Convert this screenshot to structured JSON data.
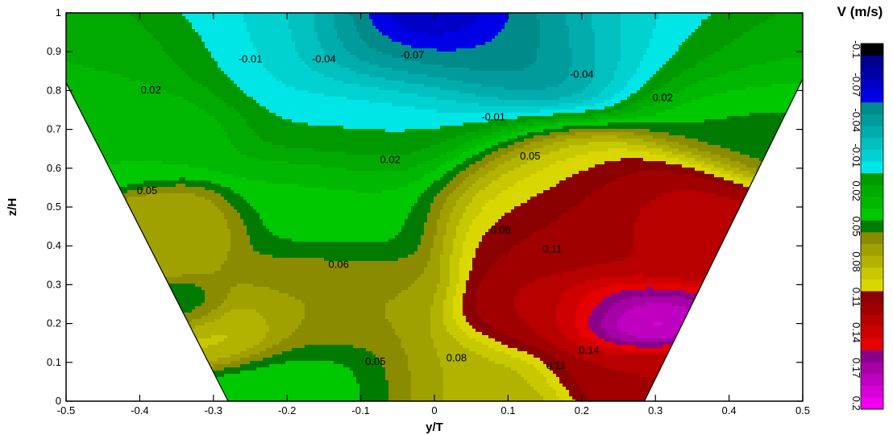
{
  "chart_data": {
    "type": "contour",
    "xlabel": "y/T",
    "ylabel": "z/H",
    "xlim": [
      -0.5,
      0.5
    ],
    "ylim": [
      0,
      1
    ],
    "x_ticks": [
      "-0.5",
      "-0.4",
      "-0.3",
      "-0.2",
      "-0.1",
      "0",
      "0.1",
      "0.2",
      "0.3",
      "0.4",
      "0.5"
    ],
    "y_ticks": [
      "0",
      "0.1",
      "0.2",
      "0.3",
      "0.4",
      "0.5",
      "0.6",
      "0.7",
      "0.8",
      "0.9",
      "1"
    ],
    "grid": false,
    "channel_boundary": [
      [
        -0.5,
        0.82
      ],
      [
        -0.28,
        0
      ],
      [
        0.285,
        0
      ],
      [
        0.5,
        0.83
      ]
    ],
    "colorbar": {
      "title": "V (m/s)",
      "placement": "right",
      "labels": [
        "-0.1",
        "-0.07",
        "-0.04",
        "-0.01",
        "0.02",
        "0.05",
        "0.08",
        "0.11",
        "0.14",
        "0.17",
        "0.2"
      ],
      "levels": [
        -0.1,
        -0.09,
        -0.08,
        -0.07,
        -0.06,
        -0.05,
        -0.04,
        -0.03,
        -0.02,
        -0.01,
        0.0,
        0.01,
        0.02,
        0.03,
        0.04,
        0.05,
        0.06,
        0.07,
        0.08,
        0.09,
        0.1,
        0.11,
        0.12,
        0.13,
        0.14,
        0.15,
        0.16,
        0.17,
        0.18,
        0.19,
        0.2
      ],
      "colors": [
        "#000000",
        "#00008b",
        "#0000a8",
        "#0000c8",
        "#0000e6",
        "#008b8b",
        "#009c9c",
        "#00adad",
        "#00c0c0",
        "#00d2d2",
        "#00e6e6",
        "#009a00",
        "#00aa00",
        "#00b800",
        "#00c800",
        "#007a00",
        "#8b8b00",
        "#a0a000",
        "#b2b200",
        "#c8c800",
        "#d8d800",
        "#8b0000",
        "#a00000",
        "#b80000",
        "#d00000",
        "#e60000",
        "#8b008b",
        "#a600a6",
        "#c000c0",
        "#d800d8",
        "#f000f0"
      ]
    },
    "contour_labels": [
      {
        "text": "-0.01",
        "x": -0.25,
        "y": 0.88
      },
      {
        "text": "-0.04",
        "x": -0.15,
        "y": 0.88
      },
      {
        "text": "-0.07",
        "x": -0.03,
        "y": 0.89
      },
      {
        "text": "-0.04",
        "x": 0.2,
        "y": 0.84
      },
      {
        "text": "-0.01",
        "x": 0.08,
        "y": 0.73
      },
      {
        "text": "0.02",
        "x": -0.385,
        "y": 0.8
      },
      {
        "text": "0.02",
        "x": 0.31,
        "y": 0.78
      },
      {
        "text": "0.02",
        "x": -0.06,
        "y": 0.62
      },
      {
        "text": "0.05",
        "x": 0.13,
        "y": 0.63
      },
      {
        "text": "0.05",
        "x": -0.39,
        "y": 0.54
      },
      {
        "text": "0.08",
        "x": 0.09,
        "y": 0.44
      },
      {
        "text": "0.11",
        "x": 0.16,
        "y": 0.39
      },
      {
        "text": "0.06",
        "x": -0.13,
        "y": 0.35
      },
      {
        "text": "0.14",
        "x": 0.21,
        "y": 0.13
      },
      {
        "text": "0.11",
        "x": 0.165,
        "y": 0.09
      },
      {
        "text": "0.08",
        "x": 0.03,
        "y": 0.11
      },
      {
        "text": "0.05",
        "x": -0.08,
        "y": 0.1
      }
    ],
    "sources": [
      {
        "x": 0.0,
        "y": 1.0,
        "v": -0.1,
        "s": 0.045
      },
      {
        "x": -0.03,
        "y": 0.96,
        "v": -0.07,
        "s": 0.09
      },
      {
        "x": 0.1,
        "y": 0.92,
        "v": -0.06,
        "s": 0.1
      },
      {
        "x": -0.25,
        "y": 0.95,
        "v": -0.01,
        "s": 0.1
      },
      {
        "x": 0.3,
        "y": 0.95,
        "v": -0.01,
        "s": 0.1
      },
      {
        "x": -0.05,
        "y": 0.72,
        "v": 0.0,
        "s": 0.1
      },
      {
        "x": -0.42,
        "y": 0.9,
        "v": 0.02,
        "s": 0.08
      },
      {
        "x": -0.42,
        "y": 0.72,
        "v": 0.03,
        "s": 0.08
      },
      {
        "x": 0.43,
        "y": 0.9,
        "v": 0.02,
        "s": 0.08
      },
      {
        "x": 0.42,
        "y": 0.75,
        "v": 0.045,
        "s": 0.08
      },
      {
        "x": -0.13,
        "y": 0.5,
        "v": 0.035,
        "s": 0.08
      },
      {
        "x": -0.35,
        "y": 0.45,
        "v": 0.07,
        "s": 0.05
      },
      {
        "x": -0.33,
        "y": 0.24,
        "v": 0.04,
        "s": 0.03
      },
      {
        "x": -0.28,
        "y": 0.19,
        "v": 0.085,
        "s": 0.04
      },
      {
        "x": -0.15,
        "y": 0.25,
        "v": 0.06,
        "s": 0.08
      },
      {
        "x": -0.13,
        "y": 0.03,
        "v": 0.03,
        "s": 0.07
      },
      {
        "x": 0.03,
        "y": 0.03,
        "v": 0.075,
        "s": 0.08
      },
      {
        "x": 0.16,
        "y": 0.55,
        "v": 0.09,
        "s": 0.09
      },
      {
        "x": 0.2,
        "y": 0.45,
        "v": 0.12,
        "s": 0.08
      },
      {
        "x": 0.28,
        "y": 0.5,
        "v": 0.13,
        "s": 0.07
      },
      {
        "x": 0.15,
        "y": 0.22,
        "v": 0.12,
        "s": 0.06
      },
      {
        "x": 0.24,
        "y": 0.22,
        "v": 0.16,
        "s": 0.05
      },
      {
        "x": 0.27,
        "y": 0.2,
        "v": 0.2,
        "s": 0.035
      },
      {
        "x": 0.25,
        "y": 0.08,
        "v": 0.12,
        "s": 0.05
      }
    ]
  }
}
